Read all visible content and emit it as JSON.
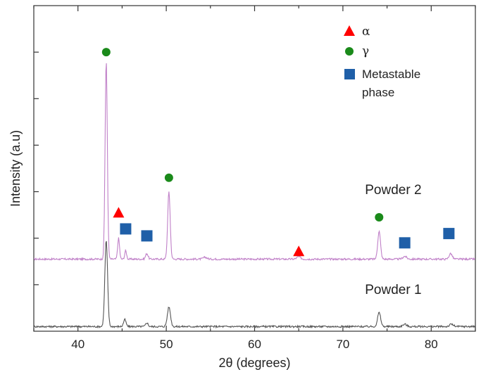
{
  "chart_data": {
    "type": "line",
    "xlabel": "2θ (degrees)",
    "ylabel": "Intensity (a.u)",
    "xlim": [
      35,
      85
    ],
    "ylim": [
      0,
      7
    ],
    "x_ticks": [
      "40",
      "50",
      "60",
      "70",
      "80"
    ],
    "grid": false,
    "legend_position": "top-right",
    "legend": [
      {
        "marker": "triangle",
        "color": "#ff0000",
        "label": "α"
      },
      {
        "marker": "circle",
        "color": "#1a8a1a",
        "label": "γ"
      },
      {
        "marker": "square",
        "color": "#1f5fa8",
        "label_lines": [
          "Metastable",
          "phase"
        ]
      }
    ],
    "series": [
      {
        "name": "Powder 2",
        "color": "#c080c8",
        "baseline": 1.55,
        "peaks": [
          {
            "x": 43.2,
            "height": 4.25,
            "width": 0.18
          },
          {
            "x": 44.6,
            "height": 0.45,
            "width": 0.15
          },
          {
            "x": 45.4,
            "height": 0.18,
            "width": 0.15
          },
          {
            "x": 47.8,
            "height": 0.12,
            "width": 0.2
          },
          {
            "x": 50.3,
            "height": 1.45,
            "width": 0.2
          },
          {
            "x": 54.4,
            "height": 0.04,
            "width": 0.3
          },
          {
            "x": 65.0,
            "height": 0.05,
            "width": 0.3
          },
          {
            "x": 74.1,
            "height": 0.6,
            "width": 0.22
          },
          {
            "x": 77.0,
            "height": 0.06,
            "width": 0.3
          },
          {
            "x": 82.2,
            "height": 0.12,
            "width": 0.25
          }
        ]
      },
      {
        "name": "Powder 1",
        "color": "#555555",
        "baseline": 0.1,
        "peaks": [
          {
            "x": 43.2,
            "height": 1.85,
            "width": 0.22
          },
          {
            "x": 45.3,
            "height": 0.15,
            "width": 0.2
          },
          {
            "x": 47.8,
            "height": 0.08,
            "width": 0.2
          },
          {
            "x": 50.3,
            "height": 0.42,
            "width": 0.25
          },
          {
            "x": 74.1,
            "height": 0.3,
            "width": 0.25
          },
          {
            "x": 77.0,
            "height": 0.05,
            "width": 0.3
          },
          {
            "x": 82.3,
            "height": 0.05,
            "width": 0.3
          }
        ]
      }
    ],
    "phase_markers": [
      {
        "phase": "γ",
        "x": 43.2,
        "y": 6.0
      },
      {
        "phase": "α",
        "x": 44.6,
        "y": 2.55
      },
      {
        "phase": "metastable",
        "x": 45.4,
        "y": 2.2
      },
      {
        "phase": "metastable",
        "x": 47.8,
        "y": 2.05
      },
      {
        "phase": "γ",
        "x": 50.3,
        "y": 3.3
      },
      {
        "phase": "α",
        "x": 65.0,
        "y": 1.72
      },
      {
        "phase": "γ",
        "x": 74.1,
        "y": 2.45
      },
      {
        "phase": "metastable",
        "x": 77.0,
        "y": 1.9
      },
      {
        "phase": "metastable",
        "x": 82.0,
        "y": 2.1
      }
    ],
    "series_labels": [
      {
        "text": "Powder 2",
        "x": 72.5,
        "y": 2.95
      },
      {
        "text": "Powder 1",
        "x": 72.5,
        "y": 0.8
      }
    ]
  }
}
